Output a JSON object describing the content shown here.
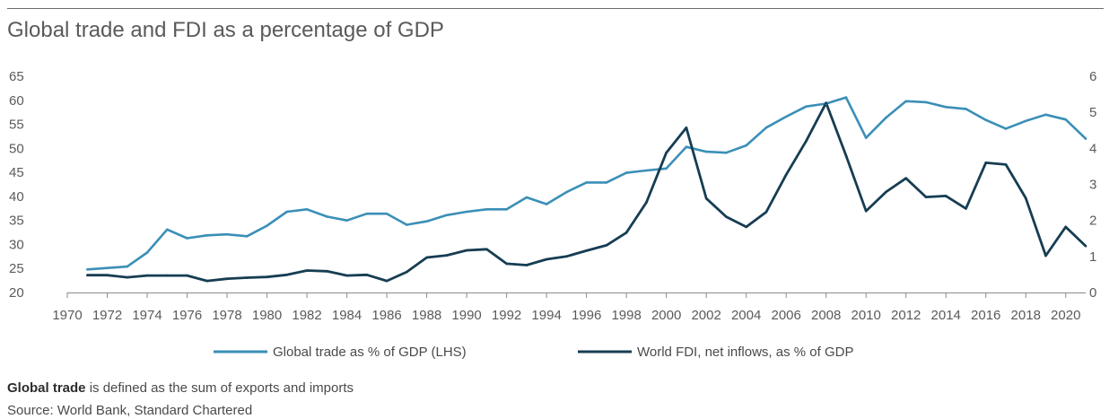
{
  "title": "Global trade and FDI as a percentage of GDP",
  "note_bold": "Global trade",
  "note_rest": " is defined as the sum of exports and imports",
  "source": "Source: World Bank, Standard Chartered",
  "chart_data": {
    "type": "line",
    "title": "Global trade and FDI as a percentage of GDP",
    "x": [
      1971,
      1972,
      1973,
      1974,
      1975,
      1976,
      1977,
      1978,
      1979,
      1980,
      1981,
      1982,
      1983,
      1984,
      1985,
      1986,
      1987,
      1988,
      1989,
      1990,
      1991,
      1992,
      1993,
      1994,
      1995,
      1996,
      1997,
      1998,
      1999,
      2000,
      2001,
      2002,
      2003,
      2004,
      2005,
      2006,
      2007,
      2008,
      2009,
      2010,
      2011,
      2012,
      2013,
      2014,
      2015,
      2016,
      2017,
      2018,
      2019,
      2020,
      2021
    ],
    "x_ticks": [
      "1970",
      "1972",
      "1974",
      "1976",
      "1978",
      "1980",
      "1982",
      "1984",
      "1986",
      "1988",
      "1990",
      "1992",
      "1994",
      "1996",
      "1998",
      "2000",
      "2002",
      "2004",
      "2006",
      "2008",
      "2010",
      "2012",
      "2014",
      "2016",
      "2018",
      "2020"
    ],
    "x_range": [
      1970,
      2021
    ],
    "y_left_ticks": [
      "20",
      "25",
      "30",
      "35",
      "40",
      "45",
      "50",
      "55",
      "60",
      "65"
    ],
    "y_left_range": [
      20,
      65
    ],
    "y_right_ticks": [
      "0",
      "1",
      "2",
      "3",
      "4",
      "5",
      "6"
    ],
    "y_right_range": [
      0,
      6
    ],
    "series": [
      {
        "name": "Global trade as % of GDP (LHS)",
        "axis": "left",
        "color": "#3a8fb7",
        "values": [
          24.8,
          25.1,
          25.4,
          28.3,
          33.1,
          31.3,
          31.9,
          32.1,
          31.7,
          33.9,
          36.8,
          37.3,
          35.8,
          35.0,
          36.4,
          36.4,
          34.1,
          34.8,
          36.1,
          36.8,
          37.3,
          37.3,
          39.8,
          38.4,
          40.9,
          42.9,
          42.9,
          44.9,
          45.4,
          45.8,
          50.3,
          49.3,
          49.1,
          50.6,
          54.3,
          56.6,
          58.7,
          59.3,
          60.6,
          52.2,
          56.4,
          59.8,
          59.6,
          58.6,
          58.2,
          55.9,
          54.1,
          55.7,
          57.0,
          56.0,
          52.0
        ]
      },
      {
        "name": "World FDI, net inflows, as % of GDP",
        "axis": "right",
        "color": "#163d52",
        "values": [
          0.48,
          0.48,
          0.42,
          0.47,
          0.47,
          0.47,
          0.32,
          0.38,
          0.41,
          0.43,
          0.49,
          0.61,
          0.59,
          0.47,
          0.49,
          0.32,
          0.57,
          0.97,
          1.03,
          1.17,
          1.2,
          0.8,
          0.76,
          0.92,
          1.0,
          1.16,
          1.31,
          1.66,
          2.5,
          3.88,
          4.57,
          2.61,
          2.1,
          1.82,
          2.23,
          3.27,
          4.2,
          5.26,
          3.8,
          2.26,
          2.79,
          3.17,
          2.65,
          2.68,
          2.33,
          3.6,
          3.55,
          2.62,
          1.02,
          1.82,
          1.29
        ]
      }
    ]
  }
}
